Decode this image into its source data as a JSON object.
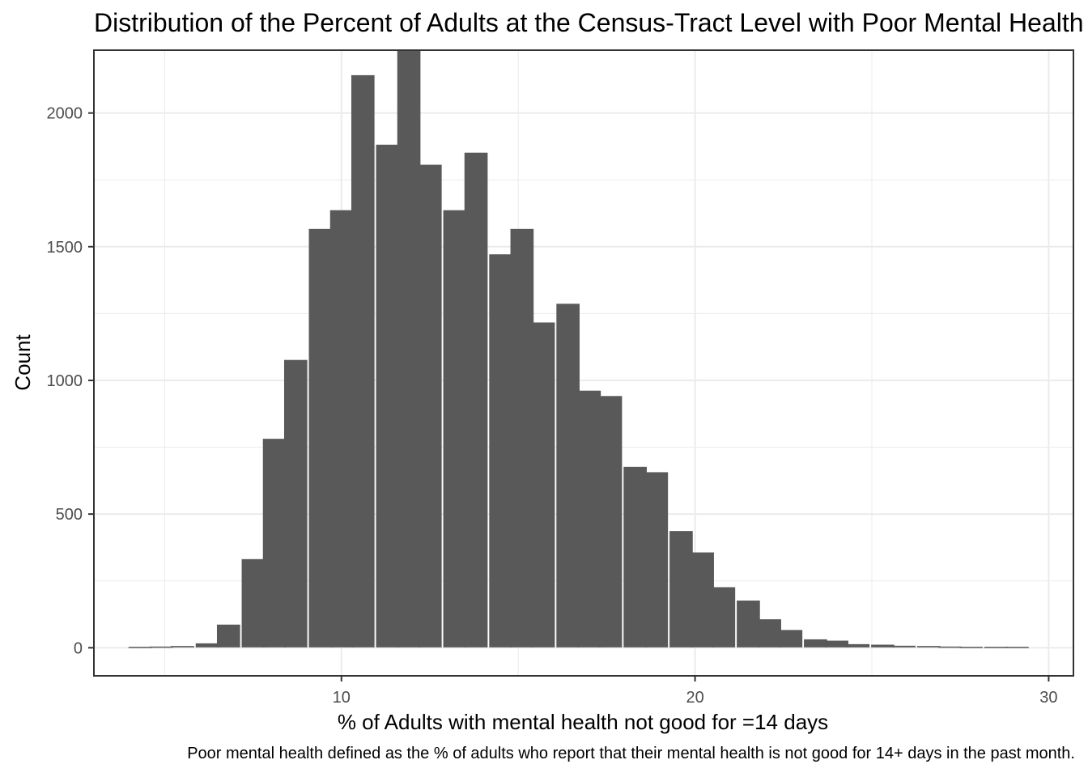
{
  "chart_data": {
    "type": "bar",
    "title": "Distribution of the Percent of Adults at the Census-Tract Level with Poor Mental Health",
    "xlabel": "% of Adults with mental health not good for =14 days",
    "ylabel": "Count",
    "caption": "Poor mental health defined as the % of adults who report that their mental health is not good for 14+ days in the past month.",
    "grid": true,
    "xlim": [
      3.0,
      30.7
    ],
    "ylim": [
      -105,
      2235
    ],
    "x_ticks": [
      10,
      20,
      30
    ],
    "y_ticks": [
      0,
      500,
      1000,
      1500,
      2000
    ],
    "bin_width": 0.642,
    "bin_centers": [
      4.3,
      4.9,
      5.5,
      6.2,
      6.8,
      7.5,
      8.1,
      8.7,
      9.4,
      10.0,
      10.6,
      11.3,
      11.9,
      12.5,
      13.2,
      13.8,
      14.5,
      15.1,
      15.7,
      16.4,
      17.0,
      17.6,
      18.3,
      18.9,
      19.6,
      20.2,
      20.8,
      21.5,
      22.1,
      22.7,
      23.4,
      24.0,
      24.6,
      25.3,
      25.9,
      26.6,
      27.2,
      27.8,
      28.5,
      29.1
    ],
    "counts": [
      2,
      3,
      5,
      15,
      85,
      330,
      780,
      1075,
      1565,
      1635,
      2140,
      1880,
      2235,
      1805,
      1635,
      1850,
      1470,
      1565,
      1215,
      1285,
      960,
      940,
      675,
      655,
      435,
      355,
      225,
      175,
      105,
      65,
      30,
      25,
      12,
      10,
      6,
      5,
      3,
      2,
      2,
      2
    ],
    "bar_color": "#595959",
    "panel_border_color": "#333333",
    "grid_color": "#ebebeb"
  }
}
